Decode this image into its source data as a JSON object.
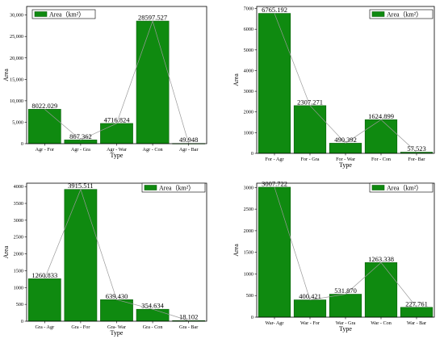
{
  "chart_data": [
    {
      "type": "bar",
      "xlabel": "Type",
      "ylabel": "Area",
      "legend": "Area（km²）",
      "legend_position": "top-left",
      "grid": false,
      "categories": [
        "Agr - For",
        "Agr - Gra",
        "Agr - War",
        "Agr - Con",
        "Agr - Bar"
      ],
      "values": [
        8022.029,
        867.362,
        4716.824,
        28597.527,
        49.948
      ],
      "value_labels": [
        "8022.029",
        "867.362",
        "4716.824",
        "28597.527",
        "49.948"
      ],
      "ylim": [
        0,
        32000
      ],
      "yticks": [
        0,
        5000,
        10000,
        15000,
        20000,
        25000,
        30000
      ],
      "ytick_labels": [
        "0",
        "5,000",
        "10,000",
        "15,000",
        "20,000",
        "25,000",
        "30,000"
      ]
    },
    {
      "type": "bar",
      "xlabel": "Type",
      "ylabel": "Area",
      "legend": "Area（km²）",
      "legend_position": "top-right",
      "grid": false,
      "categories": [
        "For - Agr",
        "For - Gra",
        "For - War",
        "For - Con",
        "For- Bar"
      ],
      "values": [
        6765.192,
        2307.271,
        490.392,
        1624.899,
        57.523
      ],
      "value_labels": [
        "6765.192",
        "2307.271",
        "490.392",
        "1624.899",
        "57.523"
      ],
      "ylim": [
        0,
        7100
      ],
      "yticks": [
        0,
        1000,
        2000,
        3000,
        4000,
        5000,
        6000,
        7000
      ],
      "ytick_labels": [
        "0",
        "1000",
        "2000",
        "3000",
        "4000",
        "5000",
        "6000",
        "7000"
      ]
    },
    {
      "type": "bar",
      "xlabel": "Type",
      "ylabel": "Area",
      "legend": "Area（km²）",
      "legend_position": "top-right",
      "grid": false,
      "categories": [
        "Gra - Agr",
        "Gra - For",
        "Gra- War",
        "Gra - Con",
        "Gra - Bar"
      ],
      "values": [
        1260.833,
        3915.511,
        639.43,
        354.634,
        18.102
      ],
      "value_labels": [
        "1260.833",
        "3915.511",
        "639.430",
        "354.634",
        "18.102"
      ],
      "ylim": [
        0,
        4100
      ],
      "yticks": [
        0,
        500,
        1000,
        1500,
        2000,
        2500,
        3000,
        3500,
        4000
      ],
      "ytick_labels": [
        "0",
        "500",
        "1000",
        "1500",
        "2000",
        "2500",
        "3000",
        "3500",
        "4000"
      ]
    },
    {
      "type": "bar",
      "xlabel": "Type",
      "ylabel": "Area",
      "legend": "Area（km²）",
      "legend_position": "top-right",
      "grid": false,
      "categories": [
        "War- Agr",
        "War - For",
        "War - Gra",
        "War - Con",
        "War - Bar"
      ],
      "values": [
        3007.722,
        400.421,
        531.87,
        1263.338,
        227.761
      ],
      "value_labels": [
        "3007.722",
        "400.421",
        "531.870",
        "1263.338",
        "227.761"
      ],
      "ylim": [
        0,
        3100
      ],
      "yticks": [
        0,
        500,
        1000,
        1500,
        2000,
        2500,
        3000
      ],
      "ytick_labels": [
        "0",
        "500",
        "1000",
        "1500",
        "2000",
        "2500",
        "3000"
      ]
    }
  ]
}
